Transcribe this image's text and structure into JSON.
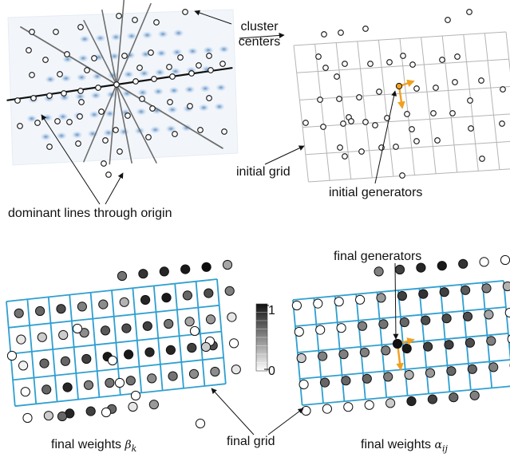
{
  "labels": {
    "cluster_centers_1": "cluster",
    "cluster_centers_2": "centers",
    "dominant_lines": "dominant lines through origin",
    "initial_grid": "initial grid",
    "initial_generators": "initial generators",
    "final_generators": "final generators",
    "final_grid": "final grid",
    "final_weights_beta": "final weights",
    "beta_symbol": "β",
    "beta_sub": "k",
    "final_weights_alpha": "final weights",
    "alpha_symbol": "α",
    "alpha_sub": "ij",
    "colorbar_max": "1",
    "colorbar_min": "0"
  },
  "colors": {
    "grid_initial": "#b4b4b4",
    "grid_final": "#2f9fd0",
    "generator_arrow": "#f0a020",
    "dominant_line_dark": "#111111",
    "dominant_line_gray": "#6e6e6e",
    "blob_blue": "#1e5aa0"
  }
}
